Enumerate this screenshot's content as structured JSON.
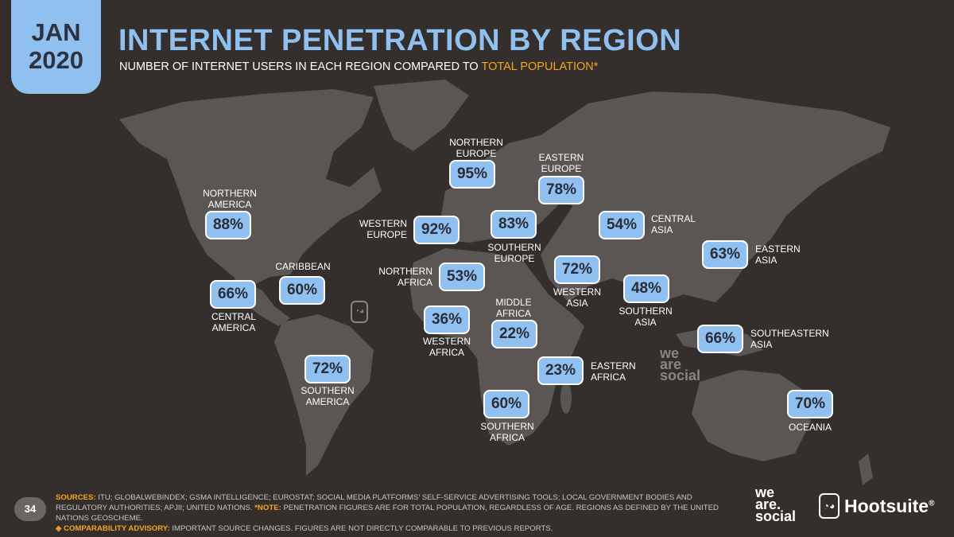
{
  "badge": {
    "month": "JAN",
    "year": "2020"
  },
  "title": "INTERNET PENETRATION BY REGION",
  "subtitle": {
    "main": "NUMBER OF INTERNET USERS IN EACH REGION COMPARED TO ",
    "accent": "TOTAL POPULATION*"
  },
  "regions": {
    "northern_america": {
      "label_1": "NORTHERN",
      "label_2": "AMERICA",
      "value": "88%"
    },
    "central_america": {
      "label_1": "CENTRAL",
      "label_2": "AMERICA",
      "value": "66%"
    },
    "caribbean": {
      "label_1": "CARIBBEAN",
      "value": "60%"
    },
    "southern_america": {
      "label_1": "SOUTHERN",
      "label_2": "AMERICA",
      "value": "72%"
    },
    "northern_europe": {
      "label_1": "NORTHERN",
      "label_2": "EUROPE",
      "value": "95%"
    },
    "western_europe": {
      "label_1": "WESTERN",
      "label_2": "EUROPE",
      "value": "92%"
    },
    "southern_europe": {
      "label_1": "SOUTHERN",
      "label_2": "EUROPE",
      "value": "83%"
    },
    "eastern_europe": {
      "label_1": "EASTERN",
      "label_2": "EUROPE",
      "value": "78%"
    },
    "northern_africa": {
      "label_1": "NORTHERN",
      "label_2": "AFRICA",
      "value": "53%"
    },
    "western_africa": {
      "label_1": "WESTERN",
      "label_2": "AFRICA",
      "value": "36%"
    },
    "middle_africa": {
      "label_1": "MIDDLE",
      "label_2": "AFRICA",
      "value": "22%"
    },
    "eastern_africa": {
      "label_1": "EASTERN",
      "label_2": "AFRICA",
      "value": "23%"
    },
    "southern_africa": {
      "label_1": "SOUTHERN",
      "label_2": "AFRICA",
      "value": "60%"
    },
    "western_asia": {
      "label_1": "WESTERN",
      "label_2": "ASIA",
      "value": "72%"
    },
    "central_asia": {
      "label_1": "CENTRAL",
      "label_2": "ASIA",
      "value": "54%"
    },
    "southern_asia": {
      "label_1": "SOUTHERN",
      "label_2": "ASIA",
      "value": "48%"
    },
    "eastern_asia": {
      "label_1": "EASTERN",
      "label_2": "ASIA",
      "value": "63%"
    },
    "southeastern_asia": {
      "label_1": "SOUTHEASTERN",
      "label_2": "ASIA",
      "value": "66%"
    },
    "oceania": {
      "label_1": "OCEANIA",
      "value": "70%"
    }
  },
  "footer": {
    "page_number": "34",
    "sources_label": "SOURCES:",
    "sources_text": " ITU; GLOBALWEBINDEX; GSMA INTELLIGENCE; EUROSTAT; SOCIAL MEDIA PLATFORMS’ SELF-SERVICE ADVERTISING TOOLS; LOCAL GOVERNMENT BODIES AND REGULATORY AUTHORITIES; APJII; UNITED NATIONS. ",
    "note_label": "*NOTE:",
    "note_text": " PENETRATION FIGURES ARE FOR TOTAL POPULATION, REGARDLESS OF AGE. REGIONS AS DEFINED BY THE UNITED NATIONS GEOSCHEME.",
    "advisory_label": "◈ COMPARABILITY ADVISORY:",
    "advisory_text": " IMPORTANT SOURCE CHANGES. FIGURES ARE NOT DIRECTLY COMPARABLE TO PREVIOUS REPORTS."
  },
  "logos": {
    "we_are_social_1": "we",
    "we_are_social_2": "are.",
    "we_are_social_3": "social",
    "watermark_1": "we",
    "watermark_2": "are",
    "watermark_3": "social",
    "hootsuite": "Hootsuite",
    "hootsuite_reg": "®",
    "owl_glyph": "◔◕"
  }
}
